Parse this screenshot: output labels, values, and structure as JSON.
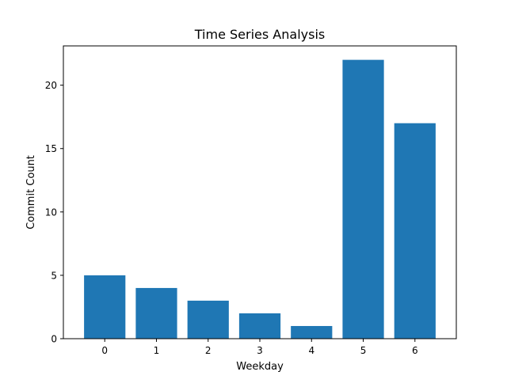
{
  "chart_data": {
    "type": "bar",
    "title": "Time Series Analysis",
    "xlabel": "Weekday",
    "ylabel": "Commit Count",
    "categories": [
      "0",
      "1",
      "2",
      "3",
      "4",
      "5",
      "6"
    ],
    "values": [
      5,
      4,
      3,
      2,
      1,
      22,
      17
    ],
    "ylim": [
      0,
      23.1
    ],
    "yticks": [
      0,
      5,
      10,
      15,
      20
    ],
    "bar_color": "#1f77b4",
    "grid": false,
    "legend": "none"
  }
}
